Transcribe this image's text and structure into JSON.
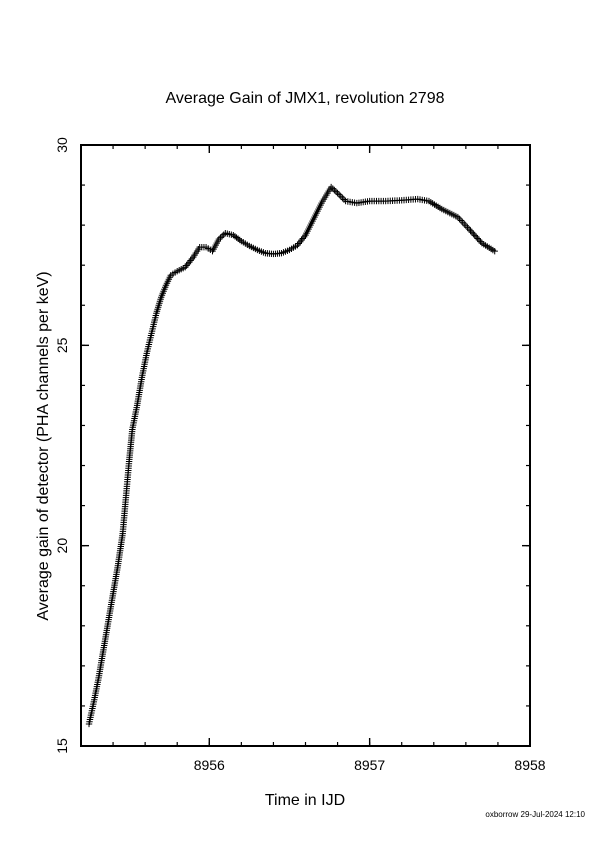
{
  "chart_data": {
    "type": "scatter",
    "title": "Average Gain of JMX1, revolution 2798",
    "xlabel": "Time in IJD",
    "ylabel": "Average gain of detector (PHA channels per keV)",
    "xlim": [
      8955.2,
      8958.0
    ],
    "ylim": [
      15,
      30
    ],
    "x_ticks": [
      8956,
      8957,
      8958
    ],
    "y_ticks": [
      15,
      20,
      25,
      30
    ],
    "grid": false,
    "marker": "plus",
    "color": "#000000",
    "series": [
      {
        "points": [
          [
            8955.25,
            15.55
          ],
          [
            8955.28,
            16.1
          ],
          [
            8955.31,
            16.7
          ],
          [
            8955.34,
            17.4
          ],
          [
            8955.37,
            18.1
          ],
          [
            8955.4,
            18.8
          ],
          [
            8955.43,
            19.5
          ],
          [
            8955.46,
            20.3
          ],
          [
            8955.48,
            21.2
          ],
          [
            8955.5,
            22.1
          ],
          [
            8955.52,
            22.9
          ],
          [
            8955.55,
            23.5
          ],
          [
            8955.58,
            24.2
          ],
          [
            8955.61,
            24.8
          ],
          [
            8955.64,
            25.3
          ],
          [
            8955.67,
            25.8
          ],
          [
            8955.7,
            26.2
          ],
          [
            8955.73,
            26.5
          ],
          [
            8955.76,
            26.75
          ],
          [
            8955.8,
            26.85
          ],
          [
            8955.85,
            26.95
          ],
          [
            8955.9,
            27.2
          ],
          [
            8955.94,
            27.45
          ],
          [
            8955.98,
            27.45
          ],
          [
            8956.02,
            27.35
          ],
          [
            8956.06,
            27.65
          ],
          [
            8956.1,
            27.8
          ],
          [
            8956.15,
            27.75
          ],
          [
            8956.2,
            27.6
          ],
          [
            8956.25,
            27.48
          ],
          [
            8956.3,
            27.38
          ],
          [
            8956.35,
            27.3
          ],
          [
            8956.4,
            27.28
          ],
          [
            8956.45,
            27.3
          ],
          [
            8956.5,
            27.38
          ],
          [
            8956.55,
            27.5
          ],
          [
            8956.6,
            27.75
          ],
          [
            8956.65,
            28.15
          ],
          [
            8956.7,
            28.55
          ],
          [
            8956.76,
            28.95
          ],
          [
            8956.8,
            28.8
          ],
          [
            8956.85,
            28.6
          ],
          [
            8956.92,
            28.55
          ],
          [
            8957.0,
            28.6
          ],
          [
            8957.1,
            28.6
          ],
          [
            8957.2,
            28.62
          ],
          [
            8957.3,
            28.65
          ],
          [
            8957.37,
            28.6
          ],
          [
            8957.45,
            28.4
          ],
          [
            8957.55,
            28.2
          ],
          [
            8957.62,
            27.9
          ],
          [
            8957.7,
            27.55
          ],
          [
            8957.78,
            27.35
          ]
        ]
      }
    ]
  },
  "footer": "oxborrow 29-Jul-2024 12:10"
}
